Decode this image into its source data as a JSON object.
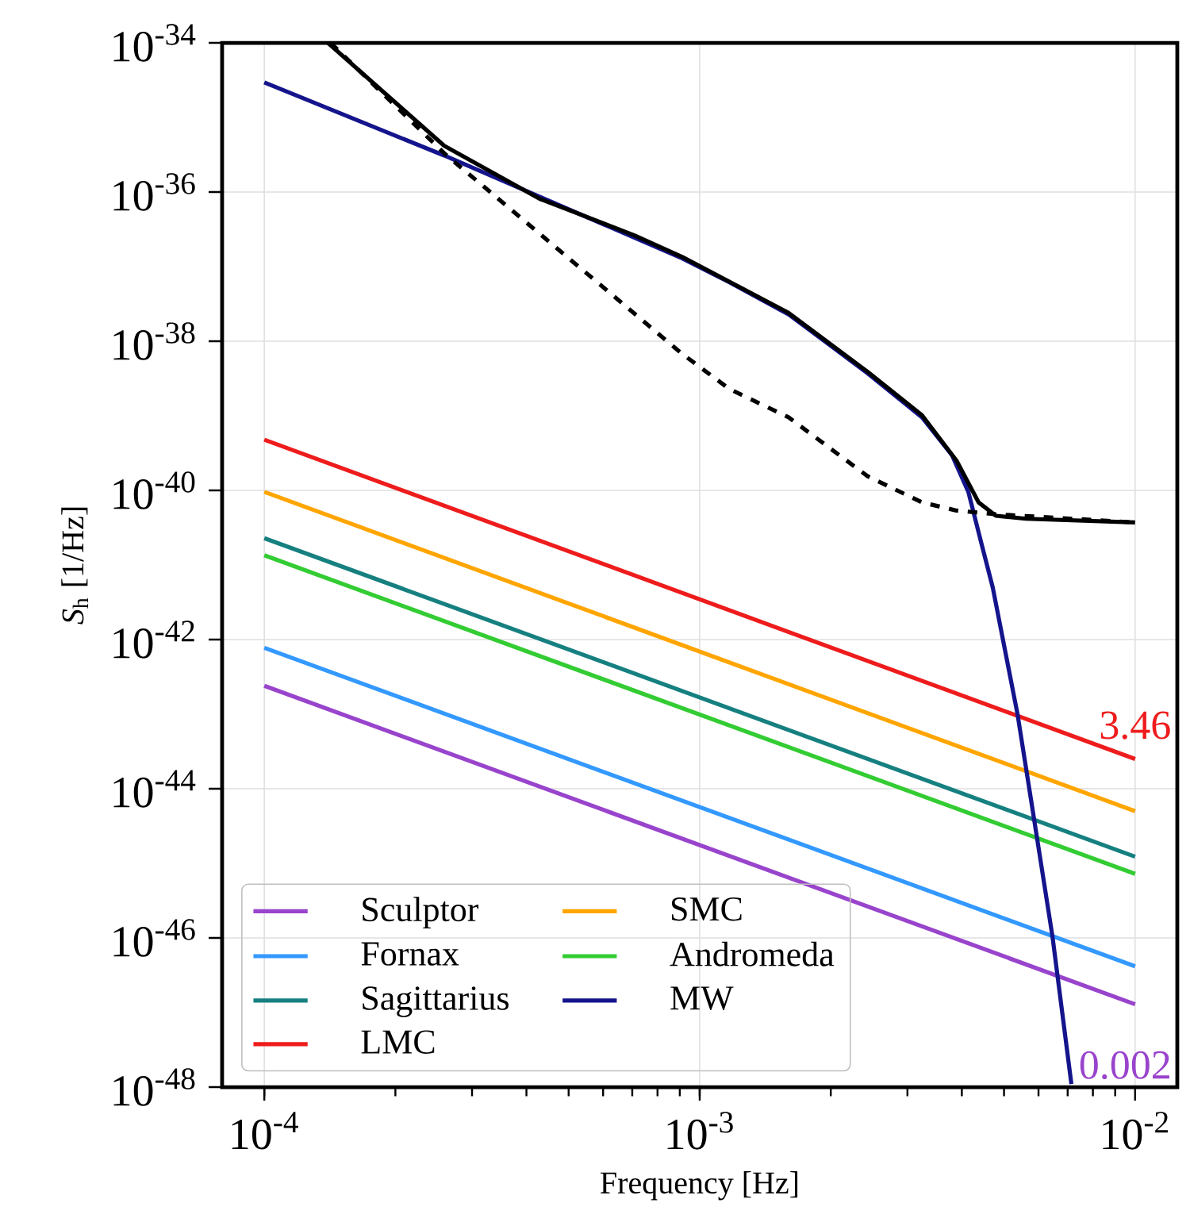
{
  "chart_data": {
    "type": "line",
    "xlabel": "Frequency [Hz]",
    "ylabel": "*S*$_{h}$ [1/Hz]",
    "log": "xy",
    "grid": true,
    "legend": "bottom left",
    "xlim": [
      8e-05,
      0.0125
    ],
    "ylim": [
      1e-48,
      1e-34
    ],
    "xticks": [
      {
        "value": 0.0001,
        "label": "10$^{-4}$"
      },
      {
        "value": 0.001,
        "label": "10$^{-3}$"
      },
      {
        "value": 0.01,
        "label": "10$^{-2}$"
      }
    ],
    "yticks": [
      {
        "value": 1e-48,
        "label": "10$^{-48}$"
      },
      {
        "value": 1e-46,
        "label": "10$^{-46}$"
      },
      {
        "value": 1e-44,
        "label": "10$^{-44}$"
      },
      {
        "value": 1e-42,
        "label": "10$^{-42}$"
      },
      {
        "value": 1e-40,
        "label": "10$^{-40}$"
      },
      {
        "value": 1e-38,
        "label": "10$^{-38}$"
      },
      {
        "value": 1e-36,
        "label": "10$^{-36}$"
      },
      {
        "value": 1e-34,
        "label": "10$^{-34}$"
      }
    ],
    "series": [
      {
        "name": "Sculptor",
        "color": "#9944cc",
        "x": [
          0.0001,
          0.01
        ],
        "values": [
          2.4e-43,
          1.29e-47
        ]
      },
      {
        "name": "Fornax",
        "color": "#3399ff",
        "x": [
          0.0001,
          0.01
        ],
        "values": [
          7.76e-43,
          4.17e-47
        ]
      },
      {
        "name": "Sagittarius",
        "color": "#168080",
        "x": [
          0.0001,
          0.01
        ],
        "values": [
          2.29e-41,
          1.23e-45
        ]
      },
      {
        "name": "LMC",
        "color": "#ee1c1c",
        "x": [
          0.0001,
          0.01
        ],
        "values": [
          4.79e-40,
          2.51e-44
        ]
      },
      {
        "name": "SMC",
        "color": "#ffa500",
        "x": [
          0.0001,
          0.01
        ],
        "values": [
          9.55e-41,
          5.01e-45
        ]
      },
      {
        "name": "Andromeda",
        "color": "#33cc33",
        "x": [
          0.0001,
          0.01
        ],
        "values": [
          1.35e-41,
          7.24e-46
        ]
      },
      {
        "name": "MW",
        "color": "#14148c",
        "x": [
          0.0001,
          0.000259,
          0.000912,
          0.00117,
          0.0016,
          0.00243,
          0.00324,
          0.0038,
          0.00414,
          0.00444,
          0.00471,
          0.00537,
          0.00579,
          0.00646,
          0.00714
        ],
        "values": [
          2.95e-35,
          3.09e-36,
          1.29e-37,
          6.17e-38,
          2.29e-38,
          3.72e-39,
          9.55e-40,
          2.95e-40,
          9.55e-41,
          1.91e-41,
          5.01e-42,
          1e-43,
          6.17e-45,
          1.05e-46,
          1.1e-48
        ]
      },
      {
        "color": "#000000",
        "x": [
          0.00014,
          0.000259,
          0.000429,
          0.000708,
          0.000912,
          0.0016,
          0.00243,
          0.00324,
          0.00389,
          0.00437,
          0.00479,
          0.00562,
          0.01
        ],
        "values": [
          1e-34,
          4.17e-36,
          8.13e-37,
          2.63e-37,
          1.35e-37,
          2.4e-38,
          3.9e-39,
          1.02e-39,
          2.51e-40,
          6.92e-41,
          4.57e-41,
          4.17e-41,
          3.72e-41
        ]
      },
      {
        "color": "#000000",
        "line_style": "dashed",
        "x": [
          0.000142,
          0.000259,
          0.000912,
          0.00117,
          0.0016,
          0.00243,
          0.00324,
          0.00389,
          0.00479,
          0.01
        ],
        "values": [
          1e-34,
          3.31e-36,
          6.76e-39,
          2.29e-39,
          9.55e-40,
          1.55e-40,
          6.92e-41,
          5.37e-41,
          4.79e-41,
          3.72e-41
        ]
      }
    ],
    "annotations": [
      "3.46",
      "0.002"
    ]
  }
}
